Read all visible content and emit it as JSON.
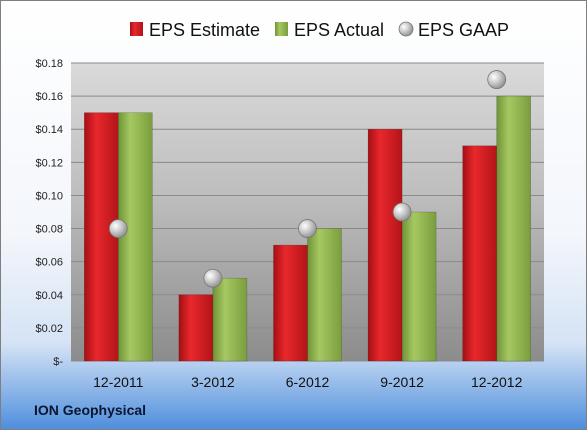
{
  "chart_data": {
    "type": "bar",
    "categories": [
      "12-2011",
      "3-2012",
      "6-2012",
      "9-2012",
      "12-2012"
    ],
    "series": [
      {
        "name": "EPS Estimate",
        "type": "bar",
        "color": "#c8161d",
        "values": [
          0.15,
          0.04,
          0.07,
          0.14,
          0.13
        ]
      },
      {
        "name": "EPS Actual",
        "type": "bar",
        "color": "#8ab04a",
        "values": [
          0.15,
          0.05,
          0.08,
          0.09,
          0.16
        ]
      },
      {
        "name": "EPS GAAP",
        "type": "scatter",
        "color": "#b8b8b8",
        "values": [
          0.08,
          0.05,
          0.08,
          0.09,
          0.17
        ]
      }
    ],
    "yticks": [
      0,
      0.02,
      0.04,
      0.06,
      0.08,
      0.1,
      0.12,
      0.14,
      0.16,
      0.18
    ],
    "ytick_labels": [
      "$-",
      "$0.02",
      "$0.04",
      "$0.06",
      "$0.08",
      "$0.10",
      "$0.12",
      "$0.14",
      "$0.16",
      "$0.18"
    ],
    "ylim": [
      0,
      0.18
    ],
    "grid": true,
    "legend_position": "top"
  },
  "footer": {
    "company": "ION Geophysical"
  }
}
